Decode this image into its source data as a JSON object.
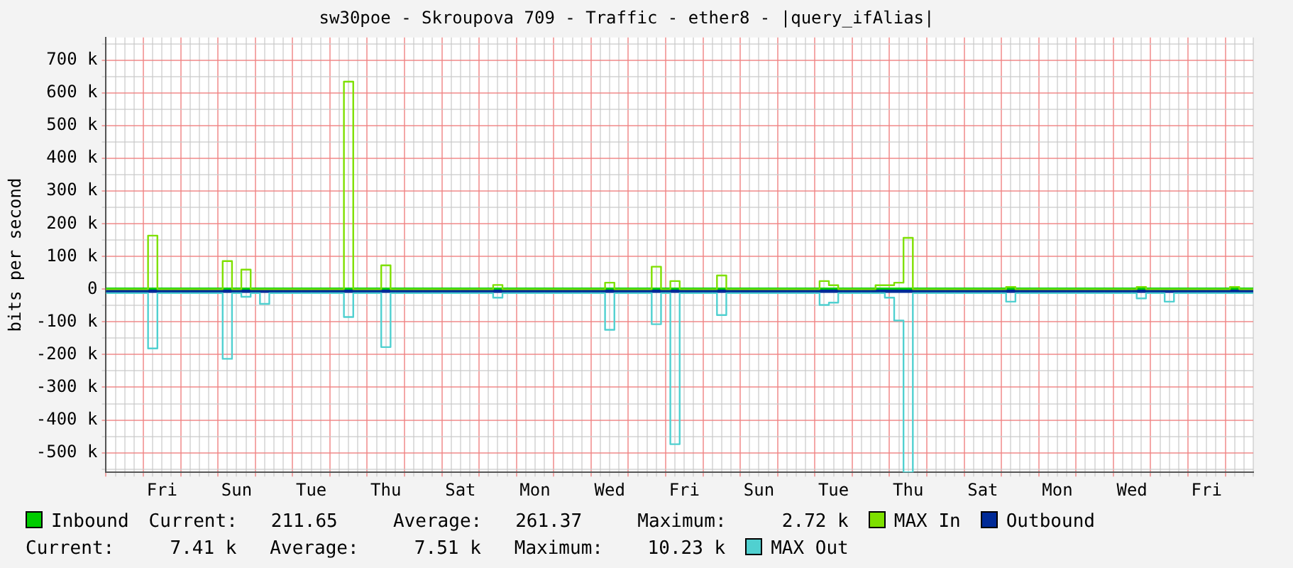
{
  "chart_data": {
    "type": "step",
    "title": "sw30poe - Skroupova 709 - Traffic - ether8 - |query_ifAlias|",
    "ylabel": "bits per second",
    "categories": [
      null,
      null,
      null,
      null,
      null,
      null,
      "Fri",
      null,
      null,
      null,
      null,
      null,
      null,
      null,
      "Sun",
      null,
      null,
      null,
      null,
      null,
      null,
      null,
      "Tue",
      null,
      null,
      null,
      null,
      null,
      null,
      null,
      "Thu",
      null,
      null,
      null,
      null,
      null,
      null,
      null,
      "Sat",
      null,
      null,
      null,
      null,
      null,
      null,
      null,
      "Mon",
      null,
      null,
      null,
      null,
      null,
      null,
      null,
      "Wed",
      null,
      null,
      null,
      null,
      null,
      null,
      null,
      "Fri",
      null,
      null,
      null,
      null,
      null,
      null,
      null,
      "Sun",
      null,
      null,
      null,
      null,
      null,
      null,
      null,
      "Tue",
      null,
      null,
      null,
      null,
      null,
      null,
      null,
      "Thu",
      null,
      null,
      null,
      null,
      null,
      null,
      null,
      "Sat",
      null,
      null,
      null,
      null,
      null,
      null,
      null,
      "Mon",
      null,
      null,
      null,
      null,
      null,
      null,
      null,
      "Wed",
      null,
      null,
      null,
      null,
      null,
      null,
      null,
      "Fri",
      null,
      null,
      null,
      null,
      null
    ],
    "ylim": [
      -560000,
      770000
    ],
    "yticks": [
      {
        "value": -550000,
        "label": null
      },
      {
        "value": -500000,
        "label": "-500 k"
      },
      {
        "value": -450000,
        "label": null
      },
      {
        "value": -400000,
        "label": "-400 k"
      },
      {
        "value": -350000,
        "label": null
      },
      {
        "value": -300000,
        "label": "-300 k"
      },
      {
        "value": -250000,
        "label": null
      },
      {
        "value": -200000,
        "label": "-200 k"
      },
      {
        "value": -150000,
        "label": null
      },
      {
        "value": -100000,
        "label": "-100 k"
      },
      {
        "value": -50000,
        "label": null
      },
      0,
      {
        "value": 50000,
        "label": null
      },
      {
        "value": 100000,
        "label": "100 k"
      },
      {
        "value": 150000,
        "label": null
      },
      {
        "value": 200000,
        "label": "200 k"
      },
      {
        "value": 250000,
        "label": null
      },
      {
        "value": 300000,
        "label": "300 k"
      },
      {
        "value": 350000,
        "label": null
      },
      {
        "value": 400000,
        "label": "400 k"
      },
      {
        "value": 450000,
        "label": null
      },
      {
        "value": 500000,
        "label": "500 k"
      },
      {
        "value": 550000,
        "label": null
      },
      {
        "value": 600000,
        "label": "600 k"
      },
      {
        "value": 650000,
        "label": null
      },
      {
        "value": 700000,
        "label": "700 k"
      },
      {
        "value": 750000,
        "label": null
      }
    ],
    "grid": true,
    "legend": "bottom",
    "annotations": [
      "Current:   211.65     Average:   261.37     Maximum:     2.72 k",
      "Current:     7.41 k   Average:     7.51 k   Maximum:    10.23 k"
    ],
    "series": [
      {
        "name": "Inbound",
        "type": "area",
        "color": "#00cc00",
        "values": [
          2000,
          2000,
          2000,
          2000,
          2000,
          2000,
          2000,
          2000,
          2000,
          2000,
          2000,
          2000,
          2000,
          2000,
          2000,
          2000,
          2000,
          2000,
          2000,
          2000,
          2000,
          2000,
          2000,
          2000,
          2000,
          2000,
          2000,
          2000,
          2000,
          2000,
          2000,
          2000,
          2000,
          2000,
          2000,
          2000,
          2000,
          2000,
          2000,
          2000,
          2000,
          2000,
          2000,
          2000,
          2000,
          2000,
          2000,
          2000,
          2000,
          2000,
          2000,
          2000,
          2000,
          2000,
          2000,
          2000,
          2000,
          2000,
          2000,
          2000,
          2000,
          2000,
          2000,
          2000,
          2000,
          2000,
          2000,
          2000,
          2000,
          2000,
          2000,
          2000,
          2000,
          2000,
          2000,
          2000,
          2000,
          2000,
          2000,
          2000,
          2000,
          2000,
          2000,
          2000,
          2000,
          2000,
          2000,
          2000,
          2000,
          2000,
          2000,
          2000,
          2000,
          2000,
          2000,
          2000,
          2000,
          2000,
          2000,
          2000,
          2000,
          2000,
          2000,
          2000,
          2000,
          2000,
          2000,
          2000,
          2000,
          2000,
          2000,
          2000,
          2000,
          2000,
          2000,
          2000,
          2000,
          2000,
          2000,
          2000,
          2000,
          2000,
          2000,
          2000
        ]
      },
      {
        "name": "MAX In",
        "type": "step",
        "color": "#7ee000",
        "values": [
          0,
          0,
          0,
          0,
          0,
          164000,
          0,
          0,
          0,
          0,
          0,
          0,
          0,
          86000,
          0,
          60000,
          0,
          0,
          0,
          0,
          0,
          0,
          0,
          0,
          0,
          0,
          635000,
          0,
          0,
          0,
          73000,
          0,
          0,
          0,
          0,
          0,
          0,
          0,
          0,
          0,
          0,
          0,
          13000,
          0,
          0,
          0,
          0,
          0,
          0,
          0,
          0,
          0,
          0,
          0,
          20000,
          0,
          0,
          0,
          0,
          69000,
          0,
          25000,
          0,
          0,
          0,
          0,
          42000,
          0,
          0,
          0,
          0,
          0,
          0,
          0,
          0,
          0,
          0,
          25000,
          12000,
          0,
          0,
          0,
          0,
          12000,
          12000,
          20000,
          157000,
          0,
          0,
          0,
          0,
          0,
          0,
          0,
          0,
          0,
          0,
          7000,
          0,
          0,
          0,
          0,
          0,
          0,
          0,
          0,
          0,
          0,
          0,
          0,
          0,
          7000,
          0,
          0,
          0,
          0,
          0,
          0,
          0,
          0,
          0,
          7000,
          0,
          0
        ]
      },
      {
        "name": "Outbound",
        "type": "area",
        "color": "#002a97",
        "values": [
          -8000,
          -8000,
          -8000,
          -8000,
          -8000,
          -8000,
          -8000,
          -8000,
          -8000,
          -8000,
          -8000,
          -8000,
          -8000,
          -8000,
          -8000,
          -8000,
          -8000,
          -8000,
          -8000,
          -8000,
          -8000,
          -8000,
          -8000,
          -8000,
          -8000,
          -8000,
          -8000,
          -8000,
          -8000,
          -8000,
          -8000,
          -8000,
          -8000,
          -8000,
          -8000,
          -8000,
          -8000,
          -8000,
          -8000,
          -8000,
          -8000,
          -8000,
          -8000,
          -8000,
          -8000,
          -8000,
          -8000,
          -8000,
          -8000,
          -8000,
          -8000,
          -8000,
          -8000,
          -8000,
          -8000,
          -8000,
          -8000,
          -8000,
          -8000,
          -8000,
          -8000,
          -8000,
          -8000,
          -8000,
          -8000,
          -8000,
          -8000,
          -8000,
          -8000,
          -8000,
          -8000,
          -8000,
          -8000,
          -8000,
          -8000,
          -8000,
          -8000,
          -8000,
          -8000,
          -8000,
          -8000,
          -8000,
          -8000,
          -8000,
          -8000,
          -8000,
          -8000,
          -8000,
          -8000,
          -8000,
          -8000,
          -8000,
          -8000,
          -8000,
          -8000,
          -8000,
          -8000,
          -8000,
          -8000,
          -8000,
          -8000,
          -8000,
          -8000,
          -8000,
          -8000,
          -8000,
          -8000,
          -8000,
          -8000,
          -8000,
          -8000,
          -8000,
          -8000,
          -8000,
          -8000,
          -8000,
          -8000,
          -8000,
          -8000,
          -8000,
          -8000,
          -8000,
          -8000,
          -8000
        ]
      },
      {
        "name": "MAX Out",
        "type": "step",
        "color": "#50d0d0",
        "values": [
          -12000,
          -12000,
          -12000,
          -12000,
          -12000,
          -181000,
          -12000,
          -12000,
          -12000,
          -12000,
          -12000,
          -12000,
          -12000,
          -213000,
          -12000,
          -23000,
          -12000,
          -45000,
          -12000,
          -12000,
          -12000,
          -12000,
          -12000,
          -12000,
          -12000,
          -12000,
          -85000,
          -12000,
          -12000,
          -12000,
          -177000,
          -12000,
          -12000,
          -12000,
          -12000,
          -12000,
          -12000,
          -12000,
          -12000,
          -12000,
          -12000,
          -12000,
          -26000,
          -12000,
          -12000,
          -12000,
          -12000,
          -12000,
          -12000,
          -12000,
          -12000,
          -12000,
          -12000,
          -12000,
          -124000,
          -12000,
          -12000,
          -12000,
          -12000,
          -107000,
          -12000,
          -474000,
          -12000,
          -12000,
          -12000,
          -12000,
          -79000,
          -12000,
          -12000,
          -12000,
          -12000,
          -12000,
          -12000,
          -12000,
          -12000,
          -12000,
          -12000,
          -48000,
          -41000,
          -12000,
          -12000,
          -12000,
          -12000,
          -12000,
          -26000,
          -96000,
          -560000,
          -12000,
          -12000,
          -12000,
          -12000,
          -12000,
          -12000,
          -12000,
          -12000,
          -12000,
          -12000,
          -38000,
          -12000,
          -12000,
          -12000,
          -12000,
          -12000,
          -12000,
          -12000,
          -12000,
          -12000,
          -12000,
          -12000,
          -12000,
          -12000,
          -28000,
          -12000,
          -12000,
          -38000,
          -12000,
          -12000,
          -12000,
          -12000,
          -12000,
          -12000,
          -12000,
          -12000,
          -12000
        ]
      }
    ]
  }
}
